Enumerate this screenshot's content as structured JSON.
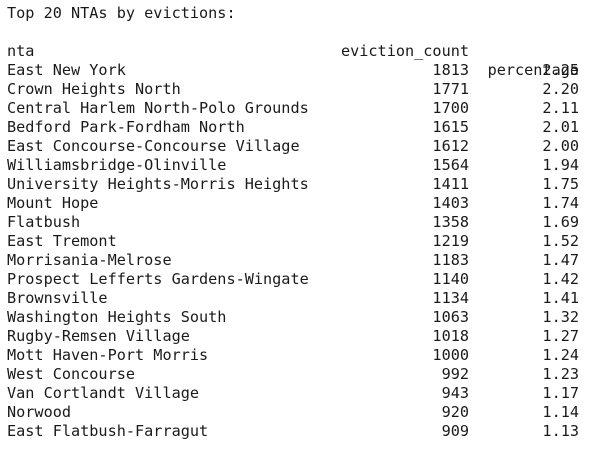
{
  "output": {
    "title": "Top 20 NTAs by evictions:",
    "columns": {
      "count": "eviction_count",
      "pct": "percentage"
    },
    "index_name": "nta",
    "rows": [
      {
        "nta": "East New York",
        "count": "1813",
        "pct": "2.25"
      },
      {
        "nta": "Crown Heights North",
        "count": "1771",
        "pct": "2.20"
      },
      {
        "nta": "Central Harlem North-Polo Grounds",
        "count": "1700",
        "pct": "2.11"
      },
      {
        "nta": "Bedford Park-Fordham North",
        "count": "1615",
        "pct": "2.01"
      },
      {
        "nta": "East Concourse-Concourse Village",
        "count": "1612",
        "pct": "2.00"
      },
      {
        "nta": "Williamsbridge-Olinville",
        "count": "1564",
        "pct": "1.94"
      },
      {
        "nta": "University Heights-Morris Heights",
        "count": "1411",
        "pct": "1.75"
      },
      {
        "nta": "Mount Hope",
        "count": "1403",
        "pct": "1.74"
      },
      {
        "nta": "Flatbush",
        "count": "1358",
        "pct": "1.69"
      },
      {
        "nta": "East Tremont",
        "count": "1219",
        "pct": "1.52"
      },
      {
        "nta": "Morrisania-Melrose",
        "count": "1183",
        "pct": "1.47"
      },
      {
        "nta": "Prospect Lefferts Gardens-Wingate",
        "count": "1140",
        "pct": "1.42"
      },
      {
        "nta": "Brownsville",
        "count": "1134",
        "pct": "1.41"
      },
      {
        "nta": "Washington Heights South",
        "count": "1063",
        "pct": "1.32"
      },
      {
        "nta": "Rugby-Remsen Village",
        "count": "1018",
        "pct": "1.27"
      },
      {
        "nta": "Mott Haven-Port Morris",
        "count": "1000",
        "pct": "1.24"
      },
      {
        "nta": "West Concourse",
        "count": "992",
        "pct": "1.23"
      },
      {
        "nta": "Van Cortlandt Village",
        "count": "943",
        "pct": "1.17"
      },
      {
        "nta": "Norwood",
        "count": "920",
        "pct": "1.14"
      },
      {
        "nta": "East Flatbush-Farragut",
        "count": "909",
        "pct": "1.13"
      }
    ]
  }
}
